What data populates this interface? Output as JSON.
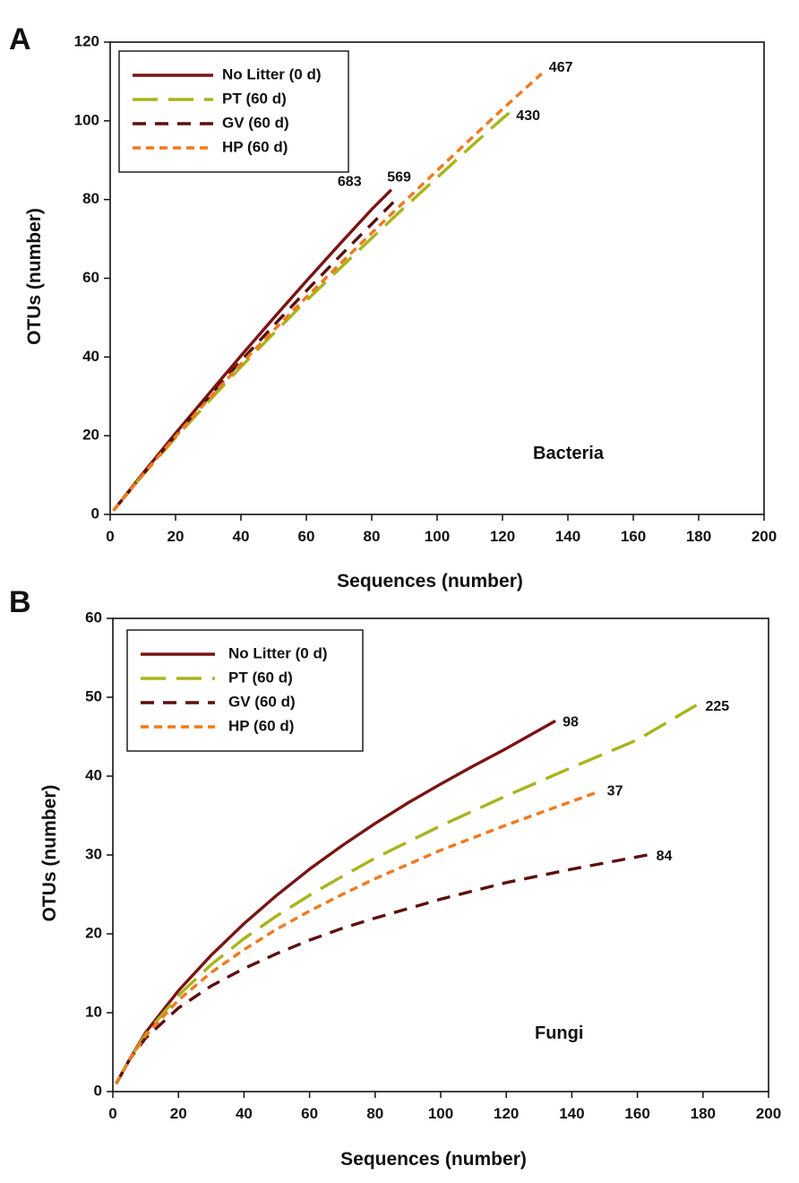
{
  "chart_data": [
    {
      "panel": "A",
      "type": "line",
      "title": "",
      "annotation": "Bacteria",
      "xlabel": "Sequences (number)",
      "ylabel": "OTUs (number)",
      "xlim": [
        0,
        200
      ],
      "ylim": [
        0,
        120
      ],
      "xticks": [
        0,
        20,
        40,
        60,
        80,
        100,
        120,
        140,
        160,
        180,
        200
      ],
      "yticks": [
        0,
        20,
        40,
        60,
        80,
        100,
        120
      ],
      "legend_position": "top-left",
      "series": [
        {
          "name": "No Litter (0 d)",
          "color": "#7a1414",
          "dash": "solid",
          "end_label": "683",
          "x": [
            1,
            10,
            20,
            30,
            40,
            50,
            60,
            70,
            80,
            86
          ],
          "y": [
            1,
            10.4,
            20.6,
            30.5,
            40.3,
            49.9,
            59.3,
            68.5,
            77.5,
            82.5
          ]
        },
        {
          "name": "PT (60 d)",
          "color": "#a8b41c",
          "dash": "long",
          "end_label": "430",
          "x": [
            1,
            10,
            20,
            30,
            40,
            50,
            60,
            70,
            80,
            90,
            100,
            110,
            120,
            122
          ],
          "y": [
            1,
            10,
            19.5,
            28.6,
            37.5,
            46,
            54.3,
            62.3,
            70.2,
            78,
            85.6,
            93.2,
            100.6,
            102
          ]
        },
        {
          "name": "GV (60 d)",
          "color": "#5c0f0f",
          "dash": "medium",
          "end_label": "569",
          "x": [
            1,
            10,
            20,
            30,
            40,
            50,
            60,
            70,
            80,
            88
          ],
          "y": [
            1,
            10.2,
            20.1,
            29.7,
            39,
            48,
            56.8,
            65.4,
            73.8,
            80.5
          ]
        },
        {
          "name": "HP (60 d)",
          "color": "#f07a1e",
          "dash": "short",
          "end_label": "467",
          "x": [
            1,
            10,
            20,
            30,
            40,
            50,
            60,
            70,
            80,
            90,
            100,
            110,
            120,
            132
          ],
          "y": [
            1,
            10.1,
            19.8,
            29.2,
            38.2,
            46.8,
            55.2,
            63.4,
            71.5,
            79.5,
            87.4,
            95.2,
            103,
            112
          ]
        }
      ]
    },
    {
      "panel": "B",
      "type": "line",
      "title": "",
      "annotation": "Fungi",
      "xlabel": "Sequences (number)",
      "ylabel": "OTUs (number)",
      "xlim": [
        0,
        200
      ],
      "ylim": [
        0,
        60
      ],
      "xticks": [
        0,
        20,
        40,
        60,
        80,
        100,
        120,
        140,
        160,
        180,
        200
      ],
      "yticks": [
        0,
        10,
        20,
        30,
        40,
        50,
        60
      ],
      "legend_position": "top-left",
      "series": [
        {
          "name": "No Litter (0 d)",
          "color": "#7a1414",
          "dash": "solid",
          "end_label": "98",
          "x": [
            1,
            5,
            10,
            20,
            30,
            40,
            50,
            60,
            70,
            80,
            90,
            100,
            110,
            120,
            135
          ],
          "y": [
            1,
            4,
            7.5,
            12.8,
            17.3,
            21.3,
            24.9,
            28.2,
            31.2,
            34,
            36.6,
            39,
            41.3,
            43.5,
            47
          ]
        },
        {
          "name": "PT (60 d)",
          "color": "#a8b41c",
          "dash": "long",
          "end_label": "225",
          "x": [
            1,
            5,
            10,
            20,
            30,
            40,
            50,
            60,
            70,
            80,
            100,
            120,
            140,
            160,
            178
          ],
          "y": [
            1,
            4,
            7.3,
            12.2,
            16.1,
            19.4,
            22.3,
            24.9,
            27.3,
            29.6,
            33.7,
            37.5,
            41.1,
            44.6,
            49
          ]
        },
        {
          "name": "GV (60 d)",
          "color": "#5c0f0f",
          "dash": "medium",
          "end_label": "84",
          "x": [
            1,
            5,
            10,
            20,
            30,
            40,
            50,
            60,
            70,
            80,
            100,
            120,
            140,
            163
          ],
          "y": [
            1,
            4,
            6.8,
            10.6,
            13.4,
            15.6,
            17.5,
            19.2,
            20.7,
            22,
            24.4,
            26.5,
            28.2,
            30
          ]
        },
        {
          "name": "HP (60 d)",
          "color": "#f07a1e",
          "dash": "short",
          "end_label": "37",
          "x": [
            1,
            5,
            10,
            20,
            30,
            40,
            50,
            60,
            70,
            80,
            100,
            120,
            148
          ],
          "y": [
            1,
            4,
            7.1,
            11.6,
            15.1,
            18,
            20.6,
            22.9,
            25,
            27,
            30.6,
            33.8,
            38
          ]
        }
      ]
    }
  ]
}
